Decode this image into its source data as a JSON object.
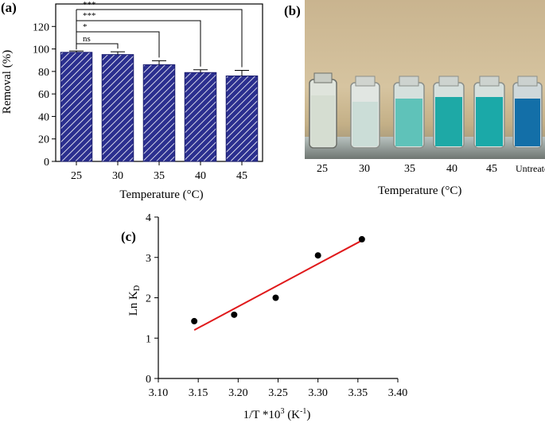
{
  "panels": {
    "a": "(a)",
    "b": "(b)",
    "c": "(c)"
  },
  "colors": {
    "bar_fill": "#2b2f8f",
    "fit_line": "#e0191b",
    "point": "#000000"
  },
  "chart_data": [
    {
      "id": "a",
      "type": "bar",
      "categories": [
        "25",
        "30",
        "35",
        "40",
        "45"
      ],
      "values": [
        97,
        95,
        86,
        79,
        76
      ],
      "errors": [
        1.2,
        2.5,
        3.5,
        2.5,
        5.0
      ],
      "ylim": [
        0,
        140
      ],
      "yticks": [
        "0",
        "20",
        "40",
        "60",
        "80",
        "100",
        "120"
      ],
      "xlabel": "Temperature (°C)",
      "ylabel": "Removal (%)",
      "significance": [
        {
          "label": "***",
          "target": "45"
        },
        {
          "label": "***",
          "target": "40"
        },
        {
          "label": "*",
          "target": "35"
        },
        {
          "label": "ns",
          "target": "30"
        }
      ]
    },
    {
      "id": "c",
      "type": "scatter",
      "x": [
        3.145,
        3.195,
        3.247,
        3.3,
        3.355
      ],
      "y": [
        1.42,
        1.58,
        2.0,
        3.05,
        3.45
      ],
      "fit": {
        "x": [
          3.145,
          3.355
        ],
        "y": [
          1.2,
          3.42
        ]
      },
      "xlim": [
        3.1,
        3.4
      ],
      "ylim": [
        0,
        4
      ],
      "xticks": [
        "3.10",
        "3.15",
        "3.20",
        "3.25",
        "3.30",
        "3.35",
        "3.40"
      ],
      "yticks": [
        "0",
        "1",
        "2",
        "3",
        "4"
      ],
      "xlabel_main": "1/T *10",
      "xlabel_sup1": "3",
      "xlabel_mid": " (K",
      "xlabel_sup2": "-1",
      "xlabel_end": ")",
      "ylabel_main": "Ln K",
      "ylabel_sub": "D"
    }
  ],
  "photo": {
    "vial_labels": [
      "25",
      "30",
      "35",
      "40",
      "45",
      "Untreated"
    ],
    "xlabel": "Temperature (°C)"
  }
}
